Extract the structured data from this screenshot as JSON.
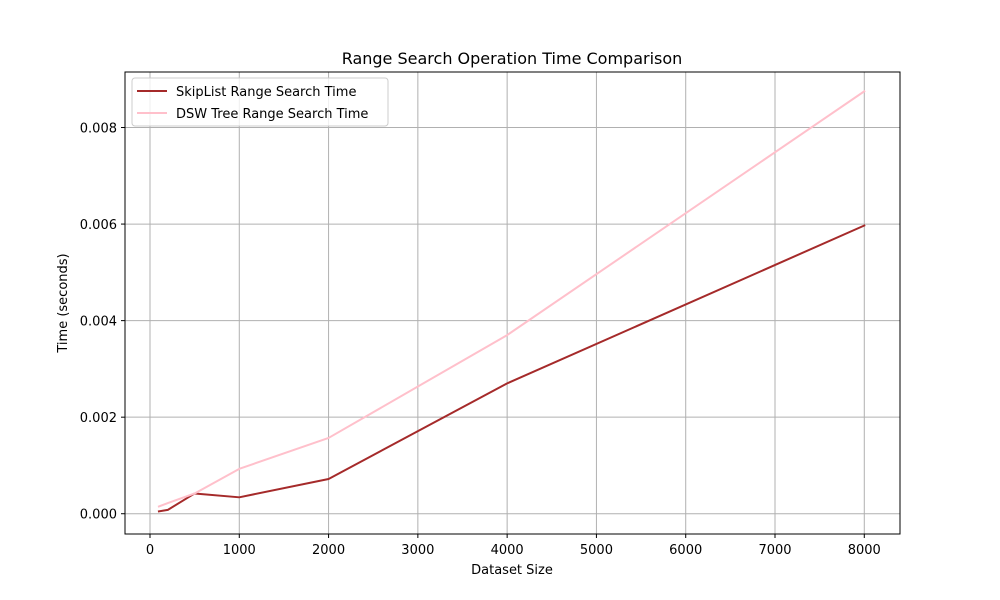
{
  "chart_data": {
    "type": "line",
    "title": "Range Search Operation Time Comparison",
    "xlabel": "Dataset Size",
    "ylabel": "Time (seconds)",
    "xlim": [
      -280,
      8400
    ],
    "ylim": [
      -0.00042,
      0.00915
    ],
    "x_ticks": [
      0,
      1000,
      2000,
      3000,
      4000,
      5000,
      6000,
      7000,
      8000
    ],
    "x_tick_labels": [
      "0",
      "1000",
      "2000",
      "3000",
      "4000",
      "5000",
      "6000",
      "7000",
      "8000"
    ],
    "y_ticks": [
      0.0,
      0.002,
      0.004,
      0.006,
      0.008
    ],
    "y_tick_labels": [
      "0.000",
      "0.002",
      "0.004",
      "0.006",
      "0.008"
    ],
    "grid": true,
    "legend_position": "top-left",
    "series": [
      {
        "name": "SkipList Range Search Time",
        "color": "#a52a2a",
        "x": [
          100,
          200,
          500,
          1000,
          2000,
          4000,
          8000
        ],
        "y": [
          5e-05,
          8e-05,
          0.00042,
          0.00034,
          0.00072,
          0.0027,
          0.00597
        ]
      },
      {
        "name": "DSW Tree Range Search Time",
        "color": "#ffc0cb",
        "x": [
          100,
          200,
          500,
          1000,
          2000,
          4000,
          8000
        ],
        "y": [
          0.00015,
          0.00022,
          0.00042,
          0.00093,
          0.00157,
          0.0037,
          0.00875
        ]
      }
    ]
  }
}
